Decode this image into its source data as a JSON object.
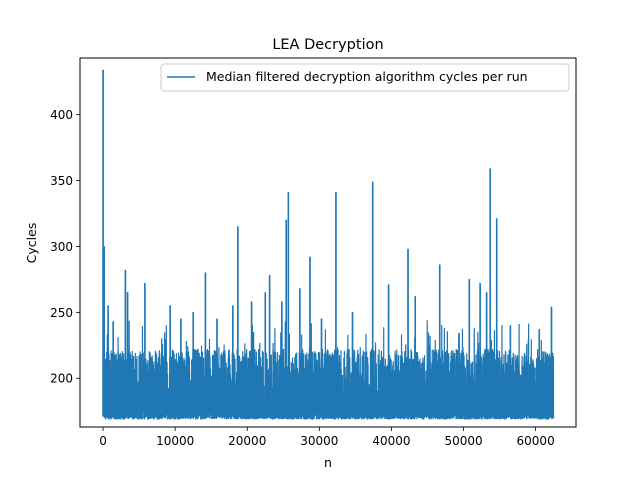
{
  "chart_data": {
    "type": "line",
    "title": "LEA Decryption",
    "xlabel": "n",
    "ylabel": "Cycles",
    "xlim": [
      -3200,
      65600
    ],
    "ylim": [
      163,
      443
    ],
    "x_ticks": [
      0,
      10000,
      20000,
      30000,
      40000,
      50000,
      60000
    ],
    "x_tick_labels": [
      "0",
      "10000",
      "20000",
      "30000",
      "40000",
      "50000",
      "60000"
    ],
    "y_ticks": [
      200,
      250,
      300,
      350,
      400
    ],
    "y_tick_labels": [
      "200",
      "250",
      "300",
      "350",
      "400"
    ],
    "legend": {
      "position": "top-right"
    },
    "grid": false,
    "series": [
      {
        "name": "Median filtered decryption algorithm cycles per run",
        "color": "#1f77b4",
        "n_points": 62500,
        "baseline_min": 169,
        "band_top": 222,
        "spikes": [
          {
            "x": 0,
            "y": 434
          },
          {
            "x": 150,
            "y": 300
          },
          {
            "x": 700,
            "y": 255
          },
          {
            "x": 1400,
            "y": 243
          },
          {
            "x": 3100,
            "y": 282
          },
          {
            "x": 3400,
            "y": 265
          },
          {
            "x": 5800,
            "y": 272
          },
          {
            "x": 9300,
            "y": 255
          },
          {
            "x": 10800,
            "y": 245
          },
          {
            "x": 12500,
            "y": 250
          },
          {
            "x": 14200,
            "y": 280
          },
          {
            "x": 15800,
            "y": 245
          },
          {
            "x": 18000,
            "y": 255
          },
          {
            "x": 18700,
            "y": 315
          },
          {
            "x": 20600,
            "y": 258
          },
          {
            "x": 22500,
            "y": 265
          },
          {
            "x": 23100,
            "y": 278
          },
          {
            "x": 24800,
            "y": 258
          },
          {
            "x": 25400,
            "y": 320
          },
          {
            "x": 25700,
            "y": 341
          },
          {
            "x": 27300,
            "y": 268
          },
          {
            "x": 28700,
            "y": 292
          },
          {
            "x": 30300,
            "y": 245
          },
          {
            "x": 32300,
            "y": 341
          },
          {
            "x": 34600,
            "y": 250
          },
          {
            "x": 37400,
            "y": 349
          },
          {
            "x": 39600,
            "y": 271
          },
          {
            "x": 42300,
            "y": 298
          },
          {
            "x": 43300,
            "y": 262
          },
          {
            "x": 46700,
            "y": 286
          },
          {
            "x": 50800,
            "y": 275
          },
          {
            "x": 52300,
            "y": 272
          },
          {
            "x": 53200,
            "y": 265
          },
          {
            "x": 53700,
            "y": 359
          },
          {
            "x": 54600,
            "y": 321
          },
          {
            "x": 56500,
            "y": 240
          },
          {
            "x": 60500,
            "y": 237
          },
          {
            "x": 62200,
            "y": 254
          }
        ]
      }
    ]
  }
}
